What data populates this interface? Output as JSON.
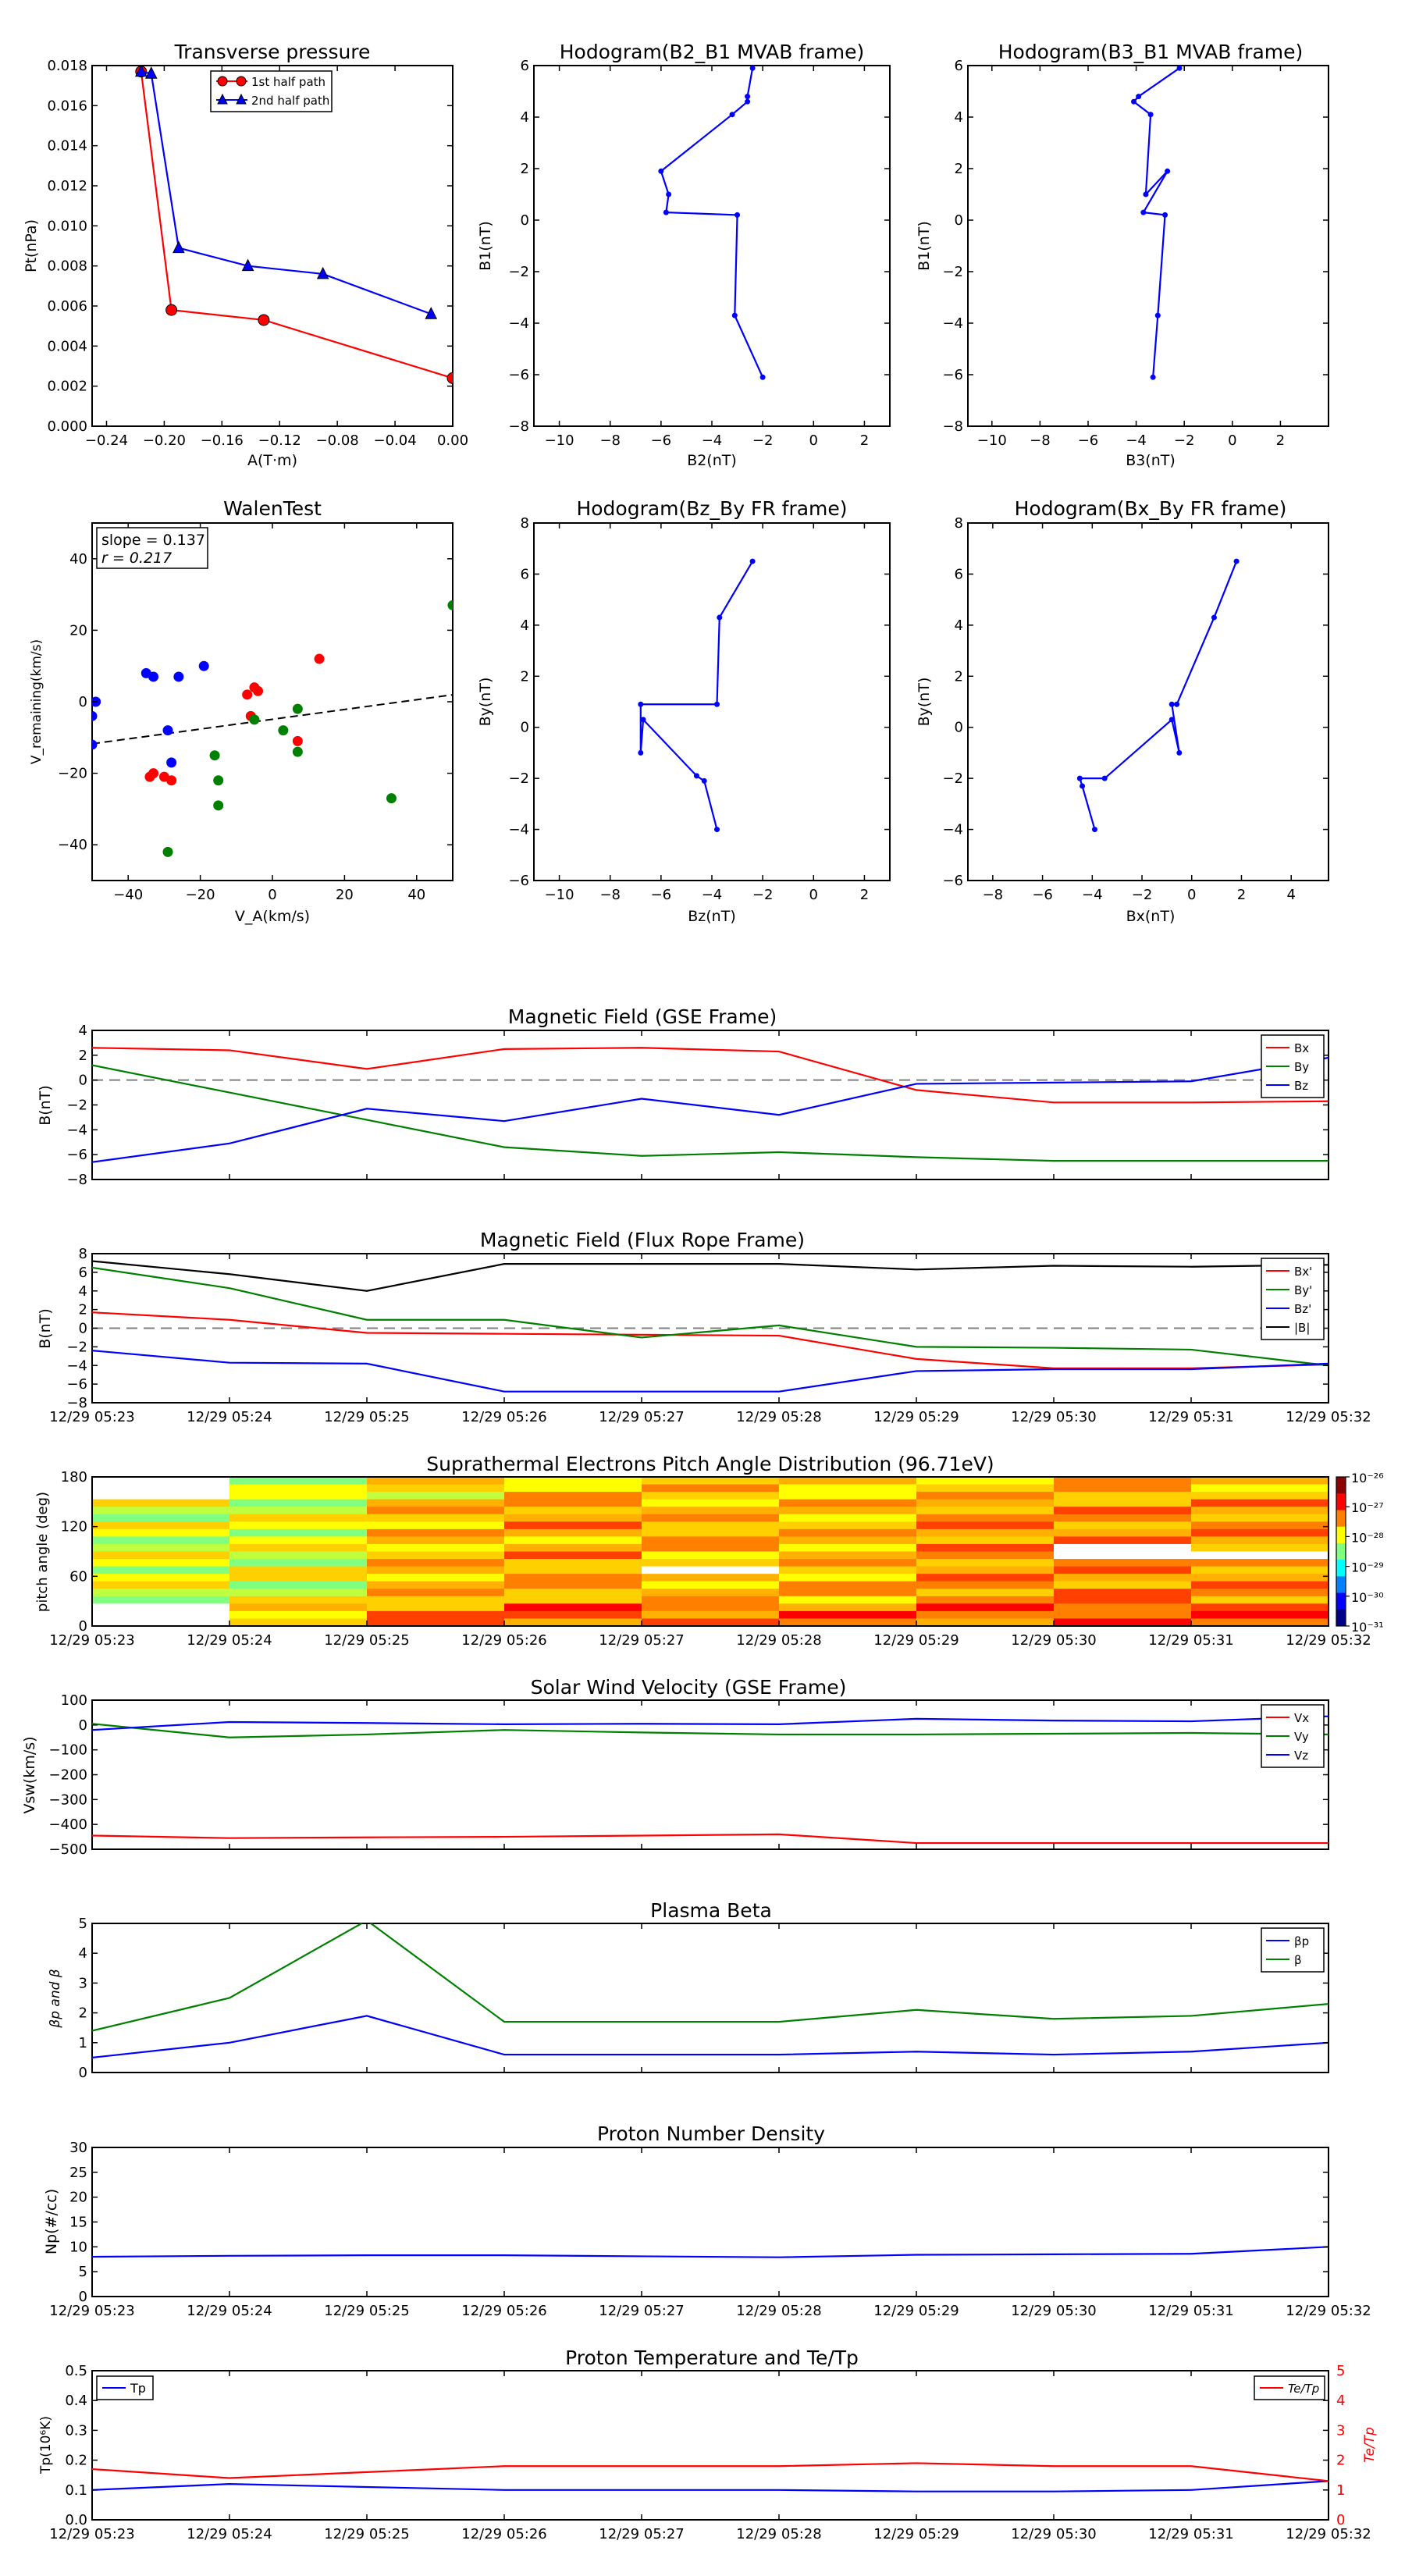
{
  "colors": {
    "red": "#ff0000",
    "green": "#008000",
    "blue": "#0000ff",
    "black": "#000000",
    "gray": "#808080"
  },
  "time_ticks": [
    "12/29 05:23",
    "12/29 05:24",
    "12/29 05:25",
    "12/29 05:26",
    "12/29 05:27",
    "12/29 05:28",
    "12/29 05:29",
    "12/29 05:30",
    "12/29 05:31",
    "12/29 05:32"
  ],
  "chart_data": [
    {
      "id": "transverse",
      "type": "line",
      "title": "Transverse pressure",
      "xlabel": "A(T·m)",
      "ylabel": "Pt(nPa)",
      "xlim": [
        -0.25,
        0.0
      ],
      "ylim": [
        0.0,
        0.018
      ],
      "xticks": [
        -0.24,
        -0.2,
        -0.16,
        -0.12,
        -0.08,
        -0.04,
        0.0
      ],
      "xtick_labels": [
        "−0.24",
        "−0.20",
        "−0.16",
        "−0.12",
        "−0.08",
        "−0.04",
        "0.00"
      ],
      "yticks": [
        0,
        0.002,
        0.004,
        0.006,
        0.008,
        0.01,
        0.012,
        0.014,
        0.016,
        0.018
      ],
      "ytick_labels": [
        "0.000",
        "0.002",
        "0.004",
        "0.006",
        "0.008",
        "0.010",
        "0.012",
        "0.014",
        "0.016",
        "0.018"
      ],
      "series": [
        {
          "name": "1st half path",
          "color": "#ff0000",
          "marker": "circle",
          "x": [
            -0.216,
            -0.195,
            -0.131,
            0.0
          ],
          "y": [
            0.0177,
            0.0058,
            0.0053,
            0.0024
          ]
        },
        {
          "name": "2nd half path",
          "color": "#0000ff",
          "marker": "triangle",
          "x": [
            -0.216,
            -0.209,
            -0.19,
            -0.142,
            -0.09,
            -0.015
          ],
          "y": [
            0.0177,
            0.0176,
            0.0089,
            0.008,
            0.0076,
            0.0056
          ]
        }
      ]
    },
    {
      "id": "hodo1",
      "type": "line",
      "title": "Hodogram(B2_B1 MVAB frame)",
      "xlabel": "B2(nT)",
      "ylabel": "B1(nT)",
      "xlim": [
        -11,
        3
      ],
      "ylim": [
        -8,
        6
      ],
      "xticks": [
        -10,
        -8,
        -6,
        -4,
        -2,
        0,
        2
      ],
      "xtick_labels": [
        "−10",
        "−8",
        "−6",
        "−4",
        "−2",
        "0",
        "2"
      ],
      "yticks": [
        -8,
        -6,
        -4,
        -2,
        0,
        2,
        4,
        6
      ],
      "ytick_labels": [
        "−8",
        "−6",
        "−4",
        "−2",
        "0",
        "2",
        "4",
        "6"
      ],
      "series": [
        {
          "name": "path",
          "color": "#0000ff",
          "marker": "dot",
          "x": [
            -2.0,
            -3.1,
            -3.0,
            -5.8,
            -5.7,
            -6.0,
            -3.2,
            -2.6,
            -2.6,
            -2.4,
            -2.4
          ],
          "y": [
            -6.1,
            -3.7,
            0.2,
            0.3,
            1.0,
            1.9,
            4.1,
            4.6,
            4.8,
            5.9,
            6.2
          ]
        }
      ]
    },
    {
      "id": "hodo2",
      "type": "line",
      "title": "Hodogram(B3_B1 MVAB frame)",
      "xlabel": "B3(nT)",
      "ylabel": "B1(nT)",
      "xlim": [
        -11,
        4
      ],
      "ylim": [
        -8,
        6
      ],
      "xticks": [
        -10,
        -8,
        -6,
        -4,
        -2,
        0,
        2
      ],
      "xtick_labels": [
        "−10",
        "−8",
        "−6",
        "−4",
        "−2",
        "0",
        "2"
      ],
      "yticks": [
        -8,
        -6,
        -4,
        -2,
        0,
        2,
        4,
        6
      ],
      "ytick_labels": [
        "−8",
        "−6",
        "−4",
        "−2",
        "0",
        "2",
        "4",
        "6"
      ],
      "series": [
        {
          "name": "path",
          "color": "#0000ff",
          "marker": "dot",
          "x": [
            -3.3,
            -3.1,
            -2.8,
            -3.7,
            -2.7,
            -3.6,
            -3.4,
            -4.1,
            -3.9,
            -2.2,
            -2.1
          ],
          "y": [
            -6.1,
            -3.7,
            0.2,
            0.3,
            1.9,
            1.0,
            4.1,
            4.6,
            4.8,
            5.9,
            6.2
          ]
        }
      ]
    },
    {
      "id": "walen",
      "type": "scatter",
      "title": "WalenTest",
      "xlabel": "V_A(km/s)",
      "ylabel": "V_remaining(km/s)",
      "xlim": [
        -50,
        50
      ],
      "ylim": [
        -50,
        50
      ],
      "xticks": [
        -40,
        -20,
        0,
        20,
        40
      ],
      "xtick_labels": [
        "−40",
        "−20",
        "0",
        "20",
        "40"
      ],
      "yticks": [
        -40,
        -20,
        0,
        20,
        40
      ],
      "ytick_labels": [
        "−40",
        "−20",
        "0",
        "20",
        "40"
      ],
      "annotation": [
        "slope = 0.137",
        "r = 0.217"
      ],
      "fit": {
        "slope": 0.137,
        "intercept": -4.9
      },
      "series": [
        {
          "name": "red",
          "color": "#ff0000",
          "x": [
            -33,
            -34,
            -30,
            -28,
            -7,
            -5,
            -4,
            -6,
            7,
            13
          ],
          "y": [
            -20,
            -21,
            -21,
            -22,
            2,
            4,
            3,
            -4,
            -11,
            12
          ]
        },
        {
          "name": "green",
          "color": "#008000",
          "x": [
            -29,
            -16,
            -15,
            -15,
            -5,
            3,
            7,
            7,
            33,
            50
          ],
          "y": [
            -42,
            -15,
            -22,
            -29,
            -5,
            -8,
            -2,
            -14,
            -27,
            27
          ]
        },
        {
          "name": "blue",
          "color": "#0000ff",
          "x": [
            -49,
            -50,
            -35,
            -33,
            -26,
            -19,
            -29,
            -28,
            -50
          ],
          "y": [
            0,
            -4,
            8,
            7,
            7,
            10,
            -8,
            -17,
            -12
          ]
        }
      ]
    },
    {
      "id": "hodo3",
      "type": "line",
      "title": "Hodogram(Bz_By FR frame)",
      "xlabel": "Bz(nT)",
      "ylabel": "By(nT)",
      "xlim": [
        -11,
        3
      ],
      "ylim": [
        -6,
        8
      ],
      "xticks": [
        -10,
        -8,
        -6,
        -4,
        -2,
        0,
        2
      ],
      "xtick_labels": [
        "−10",
        "−8",
        "−6",
        "−4",
        "−2",
        "0",
        "2"
      ],
      "yticks": [
        -6,
        -4,
        -2,
        0,
        2,
        4,
        6,
        8
      ],
      "ytick_labels": [
        "−6",
        "−4",
        "−2",
        "0",
        "2",
        "4",
        "6",
        "8"
      ],
      "series": [
        {
          "name": "path",
          "color": "#0000ff",
          "marker": "dot",
          "x": [
            -3.8,
            -4.3,
            -4.6,
            -6.7,
            -6.8,
            -6.8,
            -3.8,
            -3.7,
            -2.4
          ],
          "y": [
            -4.0,
            -2.1,
            -1.9,
            0.3,
            -1.0,
            0.9,
            0.9,
            4.3,
            6.5
          ]
        }
      ]
    },
    {
      "id": "hodo4",
      "type": "line",
      "title": "Hodogram(Bx_By FR frame)",
      "xlabel": "Bx(nT)",
      "ylabel": "By(nT)",
      "xlim": [
        -9,
        5.5
      ],
      "ylim": [
        -6,
        8
      ],
      "xticks": [
        -8,
        -6,
        -4,
        -2,
        0,
        2,
        4
      ],
      "xtick_labels": [
        "−8",
        "−6",
        "−4",
        "−2",
        "0",
        "2",
        "4"
      ],
      "yticks": [
        -6,
        -4,
        -2,
        0,
        2,
        4,
        6,
        8
      ],
      "ytick_labels": [
        "−6",
        "−4",
        "−2",
        "0",
        "2",
        "4",
        "6",
        "8"
      ],
      "series": [
        {
          "name": "path",
          "color": "#0000ff",
          "marker": "dot",
          "x": [
            -3.9,
            -4.4,
            -4.5,
            -3.5,
            -0.8,
            -0.5,
            -0.8,
            -0.6,
            0.9,
            1.8
          ],
          "y": [
            -4.0,
            -2.3,
            -2.0,
            -2.0,
            0.3,
            -1.0,
            0.9,
            0.9,
            4.3,
            6.5
          ]
        }
      ]
    },
    {
      "id": "mag_gse",
      "type": "line",
      "title": "Magnetic Field (GSE Frame)",
      "ylabel": "B(nT)",
      "ylim": [
        -8,
        4
      ],
      "yticks": [
        -8,
        -6,
        -4,
        -2,
        0,
        2,
        4
      ],
      "ytick_labels": [
        "−8",
        "−6",
        "−4",
        "−2",
        "0",
        "2",
        "4"
      ],
      "zero_line": true,
      "legend": "top-right",
      "series": [
        {
          "name": "Bx",
          "color": "#ff0000",
          "values": [
            2.6,
            2.4,
            0.9,
            2.5,
            2.6,
            2.3,
            -0.8,
            -1.8,
            -1.8,
            -1.7
          ]
        },
        {
          "name": "By",
          "color": "#008000",
          "values": [
            1.2,
            -1.0,
            -3.2,
            -5.4,
            -6.1,
            -5.8,
            -6.2,
            -6.5,
            -6.5,
            -6.5
          ]
        },
        {
          "name": "Bz",
          "color": "#0000ff",
          "values": [
            -6.6,
            -5.1,
            -2.3,
            -3.3,
            -1.5,
            -2.8,
            -0.3,
            -0.2,
            -0.1,
            1.8
          ]
        }
      ]
    },
    {
      "id": "mag_fr",
      "type": "line",
      "title": "Magnetic Field (Flux Rope Frame)",
      "ylabel": "B(nT)",
      "ylim": [
        -8,
        8
      ],
      "yticks": [
        -8,
        -6,
        -4,
        -2,
        0,
        2,
        4,
        6,
        8
      ],
      "ytick_labels": [
        "−8",
        "−6",
        "−4",
        "−2",
        "0",
        "2",
        "4",
        "6",
        "8"
      ],
      "zero_line": true,
      "legend": "top-right",
      "series": [
        {
          "name": "Bx'",
          "color": "#ff0000",
          "values": [
            1.7,
            0.9,
            -0.5,
            -0.6,
            -0.7,
            -0.8,
            -3.3,
            -4.3,
            -4.3,
            -3.9
          ]
        },
        {
          "name": "By'",
          "color": "#008000",
          "values": [
            6.5,
            4.3,
            0.9,
            0.9,
            -1.0,
            0.3,
            -2.0,
            -2.1,
            -2.3,
            -4.0
          ]
        },
        {
          "name": "Bz'",
          "color": "#0000ff",
          "values": [
            -2.4,
            -3.7,
            -3.8,
            -6.8,
            -6.8,
            -6.8,
            -4.6,
            -4.4,
            -4.4,
            -3.8
          ]
        },
        {
          "name": "|B|",
          "color": "#000000",
          "values": [
            7.2,
            5.8,
            4.0,
            6.9,
            6.9,
            6.9,
            6.3,
            6.7,
            6.6,
            6.8
          ]
        }
      ]
    },
    {
      "id": "pad",
      "type": "heatmap",
      "title": "Suprathermal Electrons Pitch Angle Distribution (96.71eV)",
      "ylabel": "pitch angle (deg)",
      "ylim": [
        0,
        180
      ],
      "yticks": [
        0,
        60,
        120,
        180
      ],
      "ytick_labels": [
        "0",
        "60",
        "120",
        "180"
      ],
      "colorbar_ticks": [
        "10⁻²⁶",
        "10⁻²⁷",
        "10⁻²⁸",
        "10⁻²⁹",
        "10⁻³⁰",
        "10⁻³¹"
      ]
    },
    {
      "id": "vel",
      "type": "line",
      "title": "Solar Wind Velocity (GSE Frame)",
      "ylabel": "Vsw(km/s)",
      "ylim": [
        -500,
        100
      ],
      "yticks": [
        -500,
        -400,
        -300,
        -200,
        -100,
        0,
        100
      ],
      "ytick_labels": [
        "−500",
        "−400",
        "−300",
        "−200",
        "−100",
        "0",
        "100"
      ],
      "legend": "top-right",
      "series": [
        {
          "name": "Vx",
          "color": "#ff0000",
          "values": [
            -445,
            -455,
            -452,
            -450,
            -445,
            -440,
            -475,
            -475,
            -475,
            -475
          ]
        },
        {
          "name": "Vy",
          "color": "#008000",
          "values": [
            5,
            -50,
            -38,
            -20,
            -30,
            -38,
            -38,
            -35,
            -32,
            -38
          ]
        },
        {
          "name": "Vz",
          "color": "#0000ff",
          "values": [
            -20,
            12,
            8,
            3,
            5,
            3,
            25,
            18,
            15,
            35
          ]
        }
      ]
    },
    {
      "id": "beta",
      "type": "line",
      "title": "Plasma Beta",
      "ylabel": "βp and β",
      "ylim": [
        0,
        5
      ],
      "yticks": [
        0,
        1,
        2,
        3,
        4,
        5
      ],
      "ytick_labels": [
        "0",
        "1",
        "2",
        "3",
        "4",
        "5"
      ],
      "legend": "top-right",
      "series": [
        {
          "name": "βp",
          "color": "#0000ff",
          "values": [
            0.5,
            1.0,
            1.9,
            0.6,
            0.6,
            0.6,
            0.7,
            0.6,
            0.7,
            1.0
          ]
        },
        {
          "name": "β",
          "color": "#008000",
          "values": [
            1.4,
            2.5,
            5.1,
            1.7,
            1.7,
            1.7,
            2.1,
            1.8,
            1.9,
            2.3
          ]
        }
      ]
    },
    {
      "id": "density",
      "type": "line",
      "title": "Proton Number Density",
      "ylabel": "Np(#/cc)",
      "ylim": [
        0,
        30
      ],
      "yticks": [
        0,
        5,
        10,
        15,
        20,
        25,
        30
      ],
      "ytick_labels": [
        "0",
        "5",
        "10",
        "15",
        "20",
        "25",
        "30"
      ],
      "series": [
        {
          "name": "Np",
          "color": "#0000ff",
          "values": [
            8,
            8.2,
            8.3,
            8.3,
            8.1,
            7.9,
            8.4,
            8.5,
            8.6,
            10
          ]
        }
      ]
    },
    {
      "id": "temp",
      "type": "line",
      "title": "Proton Temperature and Te/Tp",
      "ylabel": "Tp(10⁶K)",
      "ylabel_right": "Te/Tp",
      "ylim": [
        0,
        0.5
      ],
      "ylim_right": [
        0,
        5
      ],
      "yticks": [
        0,
        0.1,
        0.2,
        0.3,
        0.4,
        0.5
      ],
      "ytick_labels": [
        "0.0",
        "0.1",
        "0.2",
        "0.3",
        "0.4",
        "0.5"
      ],
      "yticks_right": [
        0,
        1,
        2,
        3,
        4,
        5
      ],
      "ytick_labels_right": [
        "0",
        "1",
        "2",
        "3",
        "4",
        "5"
      ],
      "series": [
        {
          "name": "Tp",
          "color": "#0000ff",
          "axis": "left",
          "values": [
            0.1,
            0.12,
            0.11,
            0.1,
            0.1,
            0.1,
            0.095,
            0.095,
            0.1,
            0.13
          ]
        },
        {
          "name": "Te/Tp",
          "color": "#ff0000",
          "axis": "right",
          "values": [
            1.7,
            1.4,
            1.6,
            1.8,
            1.8,
            1.8,
            1.9,
            1.8,
            1.8,
            1.3
          ]
        }
      ]
    }
  ]
}
